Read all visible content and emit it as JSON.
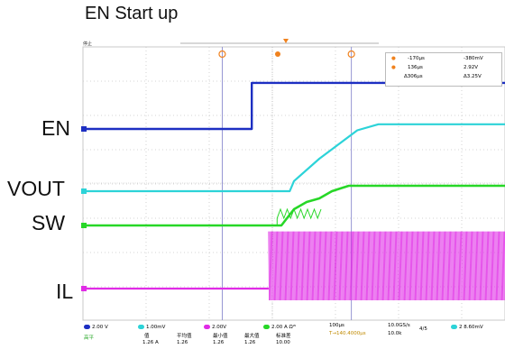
{
  "page": {
    "title": "EN Start up",
    "labels": {
      "en": "EN",
      "vout": "VOUT",
      "sw": "SW",
      "il": "IL"
    },
    "status_text": "停止"
  },
  "readout": {
    "line1_left": "-170μs",
    "line1_right": "-380mV",
    "line2_left": "136μs",
    "line2_right": "2.92V",
    "line3_left": "Δ306μs",
    "line3_right": "Δ3.25V"
  },
  "bottom_bar": {
    "ch1": "2.00 V",
    "ch2": "1.00mV",
    "ch3": "2.00V",
    "ch4": "2.00 A Ωᵂ",
    "timebase": "100μs",
    "trigger_time": "T→140.4000μs",
    "sample_rate": "10.0GS/s",
    "record": "10.0k",
    "points": "4/5",
    "trigger_ch": "2",
    "trigger_level": "8.60mV",
    "stats_headers": [
      "值",
      "平均值",
      "最小值",
      "最大值",
      "标准差"
    ],
    "stats_row_label": "高平",
    "stats_values": [
      "1.26 A",
      "1.26",
      "1.26",
      "1.26",
      "10.00"
    ]
  },
  "colors": {
    "en": "#1d2fc2",
    "vout": "#2cd3d8",
    "sw": "#27d727",
    "il": "#e02be6",
    "grid": "#c8c8c8",
    "cursor": "#8c8ccf",
    "marker": "#f0821e"
  },
  "chart_data": {
    "type": "line",
    "title": "EN Start up",
    "x_unit": "μs",
    "xlim": [
      -500,
      500
    ],
    "series": [
      {
        "name": "EN",
        "x": [
          -500,
          -100,
          -100,
          500
        ],
        "y": [
          0,
          0,
          2.92,
          2.92
        ]
      },
      {
        "name": "VOUT",
        "x": [
          -500,
          -100,
          -10,
          0,
          60,
          150,
          200,
          500
        ],
        "y": [
          0,
          0,
          0,
          0.5,
          1.6,
          3.0,
          3.3,
          3.3
        ]
      },
      {
        "name": "SW",
        "x": [
          -500,
          -100,
          -30,
          0,
          30,
          60,
          90,
          130,
          500
        ],
        "y": [
          0,
          0,
          0,
          0.9,
          1.3,
          1.5,
          1.9,
          2.2,
          2.2
        ]
      },
      {
        "name": "IL",
        "x": [
          -500,
          -60,
          -55,
          500
        ],
        "y": [
          0,
          0,
          1.26,
          1.26
        ],
        "note": "switching ripple"
      }
    ],
    "cursors_us": [
      -170,
      136
    ]
  }
}
